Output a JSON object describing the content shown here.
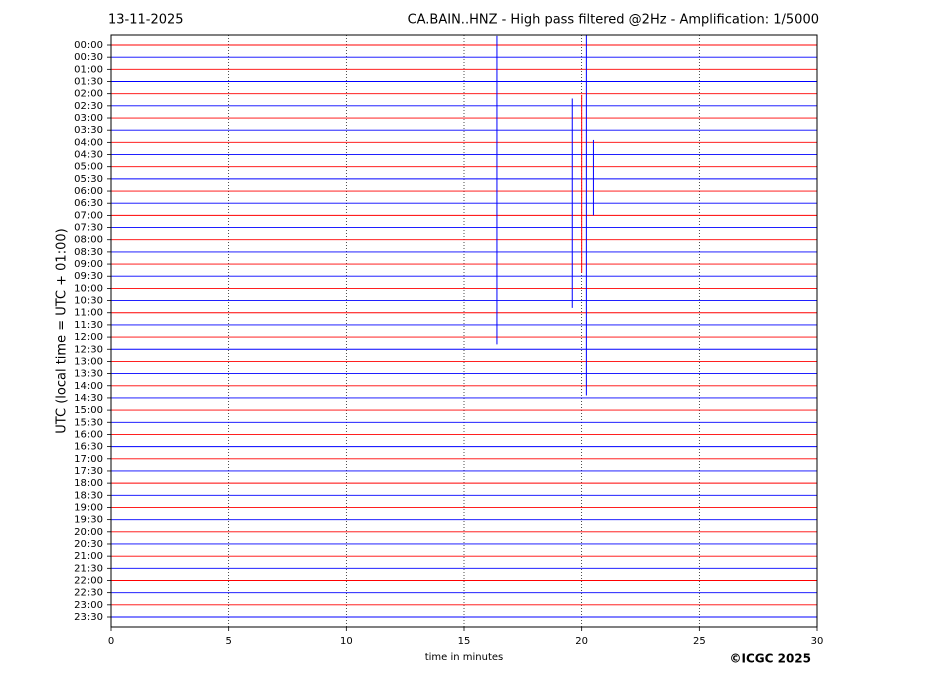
{
  "chart_data": {
    "type": "helicorder",
    "date": "13-11-2025",
    "title": "CA.BAIN..HNZ - High pass filtered @2Hz - Amplification: 1/5000",
    "xlabel": "time in minutes",
    "ylabel": "UTC (local time = UTC + 01:00)",
    "credit": "©ICGC 2025",
    "rows": [
      "00:00",
      "00:30",
      "01:00",
      "01:30",
      "02:00",
      "02:30",
      "03:00",
      "03:30",
      "04:00",
      "04:30",
      "05:00",
      "05:30",
      "06:00",
      "06:30",
      "07:00",
      "07:30",
      "08:00",
      "08:30",
      "09:00",
      "09:30",
      "10:00",
      "10:30",
      "11:00",
      "11:30",
      "12:00",
      "12:30",
      "13:00",
      "13:30",
      "14:00",
      "14:30",
      "15:00",
      "15:30",
      "16:00",
      "16:30",
      "17:00",
      "17:30",
      "18:00",
      "18:30",
      "19:00",
      "19:30",
      "20:00",
      "20:30",
      "21:00",
      "21:30",
      "22:00",
      "22:30",
      "23:00",
      "23:30"
    ],
    "colors": [
      "#ff0000",
      "#0000ff"
    ],
    "xlim": [
      0,
      30
    ],
    "xticks": [
      0,
      5,
      10,
      15,
      20,
      25,
      30
    ],
    "grid": true,
    "events": [
      {
        "row": 11,
        "x": 16.4,
        "up": 11.75,
        "down": 13.6
      },
      {
        "row": 9,
        "x": 20.2,
        "up": 10,
        "down": 19.8
      },
      {
        "row": 9,
        "x": 19.6,
        "up": 4.6,
        "down": 12.6
      },
      {
        "row": 8,
        "x": 20.0,
        "up": 3.9,
        "down": 10.7
      },
      {
        "row": 9,
        "x": 20.5,
        "up": 1.2,
        "down": 5.0
      }
    ]
  }
}
